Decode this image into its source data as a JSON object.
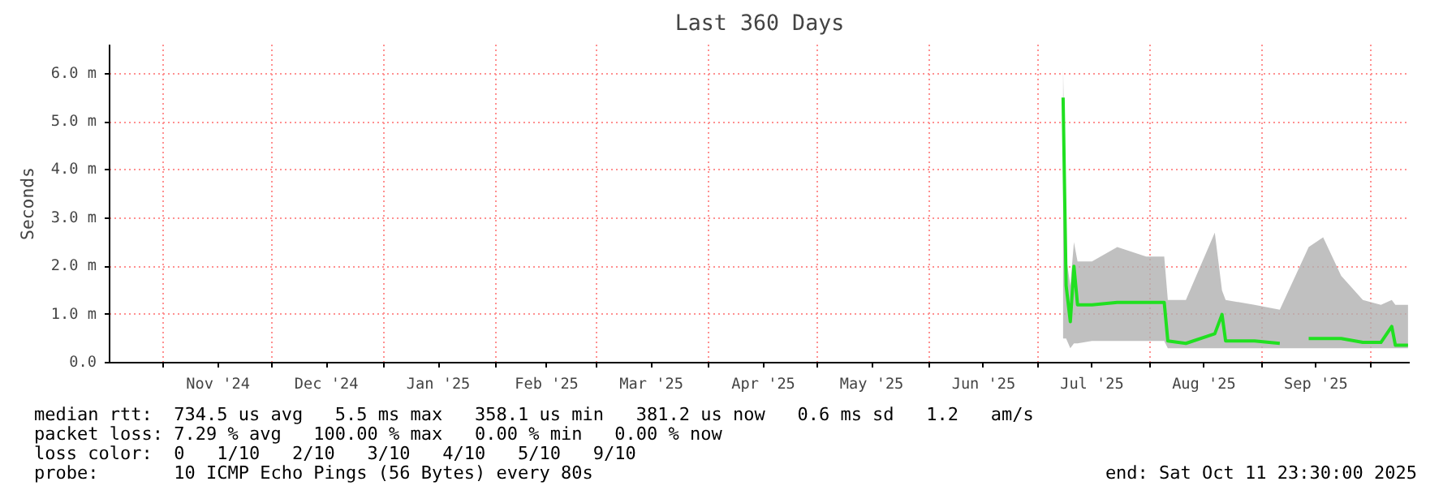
{
  "chart_data": {
    "type": "line",
    "title": "Last 360 Days",
    "ylabel": "Seconds",
    "x": [
      "2025-07-08T00:00",
      "2025-07-08T20:00",
      "2025-07-10",
      "2025-07-11",
      "2025-07-12",
      "2025-07-16",
      "2025-07-23",
      "2025-07-31",
      "2025-08-05",
      "2025-08-06",
      "2025-08-11",
      "2025-08-19",
      "2025-08-21",
      "2025-08-22",
      "2025-08-30",
      "2025-09-06",
      "2025-09-10",
      "2025-09-14",
      "2025-09-18",
      "2025-09-23",
      "2025-09-29",
      "2025-10-04",
      "2025-10-07",
      "2025-10-08",
      "2025-10-11T12:00"
    ],
    "series": [
      {
        "color": "#20e020",
        "values": [
          5.5,
          1.6,
          0.85,
          2.0,
          1.2,
          1.2,
          1.25,
          1.25,
          1.25,
          0.45,
          0.4,
          0.6,
          1.0,
          0.45,
          0.45,
          0.4,
          null,
          0.5,
          0.5,
          0.5,
          0.42,
          0.42,
          0.75,
          0.36,
          0.36
        ],
        "lower": [
          0.5,
          0.5,
          0.3,
          0.4,
          0.4,
          0.45,
          0.45,
          0.45,
          0.45,
          0.3,
          0.3,
          0.3,
          0.3,
          0.3,
          0.3,
          0.3,
          null,
          0.3,
          0.3,
          0.3,
          0.3,
          0.3,
          0.3,
          0.3,
          0.3
        ],
        "upper": [
          6.1,
          2.2,
          1.6,
          2.5,
          2.1,
          2.1,
          2.4,
          2.2,
          2.2,
          1.3,
          1.3,
          2.7,
          1.5,
          1.3,
          1.2,
          1.1,
          null,
          2.4,
          2.6,
          1.8,
          1.3,
          1.2,
          1.3,
          1.2,
          1.2
        ]
      }
    ],
    "xlim": [
      "2024-10-16T23:30",
      "2025-10-11T23:30"
    ],
    "xticks": [
      {
        "value": "2024-11-01",
        "label": null
      },
      {
        "value": "2024-11-16",
        "label": "Nov '24"
      },
      {
        "value": "2024-12-01",
        "label": null
      },
      {
        "value": "2024-12-16",
        "label": "Dec '24"
      },
      {
        "value": "2025-01-01",
        "label": null
      },
      {
        "value": "2025-01-16",
        "label": "Jan '25"
      },
      {
        "value": "2025-02-01",
        "label": null
      },
      {
        "value": "2025-02-15",
        "label": "Feb '25"
      },
      {
        "value": "2025-03-01",
        "label": null
      },
      {
        "value": "2025-03-16",
        "label": "Mar '25"
      },
      {
        "value": "2025-04-01",
        "label": null
      },
      {
        "value": "2025-04-16",
        "label": "Apr '25"
      },
      {
        "value": "2025-05-01",
        "label": null
      },
      {
        "value": "2025-05-16",
        "label": "May '25"
      },
      {
        "value": "2025-06-01",
        "label": null
      },
      {
        "value": "2025-06-16",
        "label": "Jun '25"
      },
      {
        "value": "2025-07-01",
        "label": null
      },
      {
        "value": "2025-07-16",
        "label": "Jul '25"
      },
      {
        "value": "2025-08-01",
        "label": null
      },
      {
        "value": "2025-08-16",
        "label": "Aug '25"
      },
      {
        "value": "2025-09-01",
        "label": null
      },
      {
        "value": "2025-09-16",
        "label": "Sep '25"
      },
      {
        "value": "2025-10-01",
        "label": null
      }
    ],
    "ylim": [
      0,
      6.6
    ],
    "yticks": [
      {
        "value": 0,
        "label": "0.0"
      },
      {
        "value": 1,
        "label": "1.0 m"
      },
      {
        "value": 2,
        "label": "2.0 m"
      },
      {
        "value": 3,
        "label": "3.0 m"
      },
      {
        "value": 4,
        "label": "4.0 m"
      },
      {
        "value": 5,
        "label": "5.0 m"
      },
      {
        "value": 6,
        "label": "6.0 m"
      }
    ],
    "grid": true,
    "marker": "none",
    "line_style": "solid",
    "annotations": [
      "median rtt:  734.5 us avg   5.5 ms max   358.1 us min   381.2 us now   0.6 ms sd   1.2   am/s",
      "packet loss: 7.29 % avg   100.00 % max   0.00 % min   0.00 % now",
      "loss color:  0   1/10   2/10   3/10   4/10   5/10   9/10",
      "probe:       10 ICMP Echo Pings (56 Bytes) every 80s",
      "end: Sat Oct 11 23:30:00 2025"
    ]
  }
}
